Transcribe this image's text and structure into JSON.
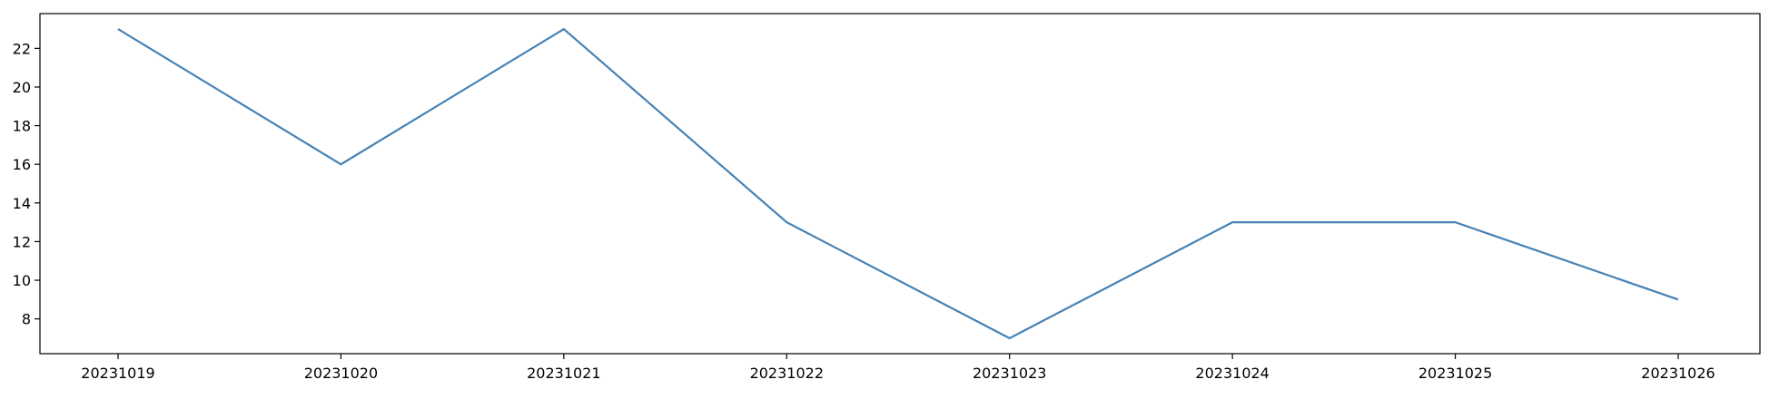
{
  "chart_data": {
    "type": "line",
    "title": "",
    "xlabel": "",
    "ylabel": "",
    "categories": [
      "20231019",
      "20231020",
      "20231021",
      "20231022",
      "20231023",
      "20231024",
      "20231025",
      "20231026"
    ],
    "series": [
      {
        "values": [
          23,
          16,
          23,
          13,
          7,
          13,
          13,
          9
        ],
        "color": "#4682b4"
      }
    ],
    "ylim": [
      6.2,
      23.8
    ],
    "yticks": [
      8,
      10,
      12,
      14,
      16,
      18,
      20,
      22
    ],
    "grid": false,
    "legend": "none"
  }
}
